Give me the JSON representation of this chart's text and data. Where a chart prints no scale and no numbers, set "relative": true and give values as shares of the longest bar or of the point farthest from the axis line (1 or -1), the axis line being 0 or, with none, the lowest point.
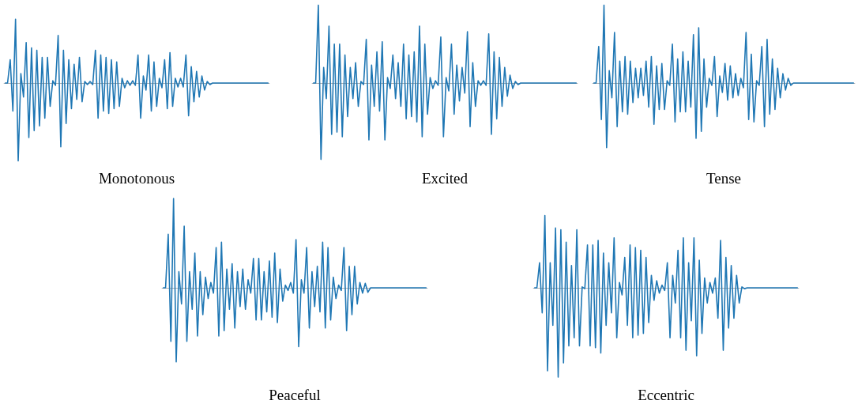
{
  "chart_data": [
    {
      "type": "line",
      "title": "Monotonous",
      "relative": true,
      "color": "#1f77b4",
      "categories": [
        null,
        null,
        null,
        null,
        null,
        null,
        null,
        null,
        null,
        null,
        null,
        null,
        null,
        null,
        null,
        null,
        null,
        null,
        null,
        null,
        null,
        null,
        null,
        null,
        null,
        null,
        null,
        null,
        null,
        null,
        null,
        null,
        null,
        null,
        null,
        null,
        null,
        null,
        null,
        null,
        null,
        null,
        null,
        null,
        null,
        null,
        null,
        null,
        null,
        null,
        null,
        null,
        null,
        null,
        null,
        null,
        null,
        null,
        null,
        null,
        null,
        null,
        null,
        null,
        null,
        null,
        null,
        null,
        null,
        null,
        null,
        null,
        null,
        null,
        null,
        null,
        null,
        null,
        null,
        null,
        null,
        null,
        null,
        null,
        null,
        null,
        null,
        null,
        null,
        null,
        null,
        null,
        null,
        null,
        null,
        null,
        null,
        null,
        null,
        null
      ],
      "values": [
        0,
        0,
        0.3,
        -0.36,
        0.82,
        -1,
        0.12,
        -0.18,
        0.52,
        -0.7,
        0.45,
        -0.61,
        0.42,
        -0.55,
        0.33,
        -0.45,
        0.33,
        -0.3,
        0.03,
        -0.03,
        0.61,
        -0.82,
        0.42,
        -0.52,
        0.3,
        -0.33,
        0.24,
        -0.21,
        0.33,
        -0.24,
        0.02,
        -0.02,
        0.02,
        -0.02,
        0.42,
        -0.45,
        0.36,
        -0.36,
        0.33,
        -0.39,
        0.3,
        -0.33,
        0.27,
        -0.3,
        0.06,
        -0.06,
        0.03,
        -0.03,
        0.03,
        -0.03,
        0.36,
        -0.45,
        0.09,
        -0.09,
        0.36,
        -0.36,
        0.27,
        -0.3,
        0.06,
        -0.06,
        0.3,
        -0.33,
        0.39,
        -0.3,
        0.06,
        -0.05,
        0.06,
        -0.05,
        0.36,
        -0.42,
        0.21,
        -0.24,
        0.15,
        -0.18,
        0.09,
        -0.09,
        0.02,
        -0.02,
        0,
        0,
        0,
        0,
        0,
        0,
        0,
        0,
        0,
        0,
        0,
        0,
        0,
        0,
        0,
        0,
        0,
        0,
        0,
        0,
        0,
        0
      ]
    },
    {
      "type": "line",
      "title": "Excited",
      "relative": true,
      "color": "#1f77b4",
      "categories": [
        null,
        null,
        null,
        null,
        null,
        null,
        null,
        null,
        null,
        null,
        null,
        null,
        null,
        null,
        null,
        null,
        null,
        null,
        null,
        null,
        null,
        null,
        null,
        null,
        null,
        null,
        null,
        null,
        null,
        null,
        null,
        null,
        null,
        null,
        null,
        null,
        null,
        null,
        null,
        null,
        null,
        null,
        null,
        null,
        null,
        null,
        null,
        null,
        null,
        null,
        null,
        null,
        null,
        null,
        null,
        null,
        null,
        null,
        null,
        null,
        null,
        null,
        null,
        null,
        null,
        null,
        null,
        null,
        null,
        null,
        null,
        null,
        null,
        null,
        null,
        null,
        null,
        null,
        null,
        null,
        null,
        null,
        null,
        null,
        null,
        null,
        null,
        null,
        null,
        null,
        null,
        null,
        null,
        null,
        null,
        null,
        null,
        null,
        null,
        null
      ],
      "values": [
        0,
        0,
        1,
        -0.98,
        0.2,
        -0.2,
        0.73,
        -0.66,
        0.5,
        -0.63,
        0.5,
        -0.69,
        0.36,
        -0.43,
        0.2,
        -0.2,
        0.26,
        -0.3,
        0.02,
        -0.02,
        0.56,
        -0.73,
        0.23,
        -0.3,
        0.4,
        -0.36,
        0.53,
        -0.73,
        0.07,
        -0.07,
        0.36,
        -0.2,
        0.26,
        -0.3,
        0.5,
        -0.46,
        0.36,
        -0.43,
        0.4,
        -0.5,
        0.73,
        -0.69,
        0.5,
        -0.4,
        0.07,
        -0.07,
        0.03,
        -0.03,
        0.59,
        -0.69,
        0.07,
        -0.1,
        0.5,
        -0.4,
        0.23,
        -0.23,
        0.2,
        -0.13,
        0.66,
        -0.56,
        0.26,
        -0.3,
        0.03,
        -0.03,
        0.03,
        -0.03,
        0.63,
        -0.66,
        0.4,
        -0.46,
        0.33,
        -0.3,
        0.2,
        -0.17,
        0.1,
        -0.07,
        0.02,
        -0.02,
        0,
        0,
        0,
        0,
        0,
        0,
        0,
        0,
        0,
        0,
        0,
        0,
        0,
        0,
        0,
        0,
        0,
        0,
        0,
        0,
        0,
        0
      ]
    },
    {
      "type": "line",
      "title": "Tense",
      "relative": true,
      "color": "#1f77b4",
      "categories": [
        null,
        null,
        null,
        null,
        null,
        null,
        null,
        null,
        null,
        null,
        null,
        null,
        null,
        null,
        null,
        null,
        null,
        null,
        null,
        null,
        null,
        null,
        null,
        null,
        null,
        null,
        null,
        null,
        null,
        null,
        null,
        null,
        null,
        null,
        null,
        null,
        null,
        null,
        null,
        null,
        null,
        null,
        null,
        null,
        null,
        null,
        null,
        null,
        null,
        null,
        null,
        null,
        null,
        null,
        null,
        null,
        null,
        null,
        null,
        null,
        null,
        null,
        null,
        null,
        null,
        null,
        null,
        null,
        null,
        null,
        null,
        null,
        null,
        null,
        null,
        null,
        null,
        null,
        null,
        null,
        null,
        null,
        null,
        null,
        null,
        null,
        null,
        null,
        null,
        null,
        null,
        null,
        null,
        null,
        null,
        null,
        null,
        null,
        null,
        null
      ],
      "values": [
        0,
        0,
        0.47,
        -0.47,
        1,
        -0.83,
        0.16,
        -0.19,
        0.65,
        -0.56,
        0.28,
        -0.37,
        0.34,
        -0.4,
        0.28,
        -0.25,
        0.19,
        -0.19,
        0.19,
        -0.16,
        0.28,
        -0.31,
        0.34,
        -0.53,
        0.22,
        -0.34,
        0.25,
        -0.34,
        0.03,
        -0.03,
        0.5,
        -0.5,
        0.31,
        -0.37,
        0.4,
        -0.37,
        0.28,
        -0.31,
        0.62,
        -0.71,
        0.71,
        -0.62,
        0.31,
        -0.31,
        0.06,
        -0.03,
        0.34,
        -0.43,
        0.09,
        -0.12,
        0.25,
        -0.22,
        0.22,
        -0.19,
        0.12,
        -0.16,
        0.06,
        -0.06,
        0.65,
        -0.47,
        0.37,
        -0.5,
        0.03,
        -0.03,
        0.47,
        -0.56,
        0.56,
        -0.4,
        0.31,
        -0.34,
        0.19,
        -0.19,
        0.12,
        -0.09,
        0.06,
        -0.03,
        0,
        0,
        0,
        0,
        0,
        0,
        0,
        0,
        0,
        0,
        0,
        0,
        0,
        0,
        0,
        0,
        0,
        0,
        0,
        0,
        0,
        0,
        0,
        0
      ]
    },
    {
      "type": "line",
      "title": "Peaceful",
      "relative": true,
      "color": "#1f77b4",
      "categories": [
        null,
        null,
        null,
        null,
        null,
        null,
        null,
        null,
        null,
        null,
        null,
        null,
        null,
        null,
        null,
        null,
        null,
        null,
        null,
        null,
        null,
        null,
        null,
        null,
        null,
        null,
        null,
        null,
        null,
        null,
        null,
        null,
        null,
        null,
        null,
        null,
        null,
        null,
        null,
        null,
        null,
        null,
        null,
        null,
        null,
        null,
        null,
        null,
        null,
        null,
        null,
        null,
        null,
        null,
        null,
        null,
        null,
        null,
        null,
        null,
        null,
        null,
        null,
        null,
        null,
        null,
        null,
        null,
        null,
        null,
        null,
        null,
        null,
        null,
        null,
        null,
        null,
        null,
        null,
        null,
        null,
        null,
        null,
        null,
        null,
        null,
        null,
        null,
        null,
        null,
        null,
        null,
        null,
        null,
        null,
        null,
        null,
        null,
        null,
        null
      ],
      "values": [
        0,
        0,
        0.6,
        -0.6,
        1,
        -0.83,
        0.18,
        -0.18,
        0.69,
        -0.6,
        0.18,
        -0.24,
        0.39,
        -0.54,
        0.18,
        -0.3,
        0.12,
        -0.12,
        0.06,
        -0.06,
        0.45,
        -0.54,
        0.51,
        -0.48,
        0.21,
        -0.24,
        0.27,
        -0.45,
        0.18,
        -0.21,
        0.21,
        -0.24,
        0.09,
        -0.06,
        0.33,
        -0.36,
        0.33,
        -0.36,
        0.18,
        -0.27,
        0.3,
        -0.33,
        0.39,
        -0.39,
        0.21,
        -0.15,
        0.03,
        -0.03,
        0.06,
        -0.06,
        0.54,
        -0.66,
        0.09,
        -0.06,
        0.45,
        -0.45,
        0.18,
        -0.21,
        0.24,
        -0.27,
        0.51,
        -0.45,
        0.45,
        -0.36,
        0.12,
        -0.12,
        0.03,
        -0.03,
        0.45,
        -0.48,
        0.24,
        -0.3,
        0.24,
        -0.18,
        0.06,
        -0.06,
        0.05,
        -0.05,
        0,
        0,
        0,
        0,
        0,
        0,
        0,
        0,
        0,
        0,
        0,
        0,
        0,
        0,
        0,
        0,
        0,
        0,
        0,
        0,
        0,
        0
      ]
    },
    {
      "type": "line",
      "title": "Eccentric",
      "relative": true,
      "color": "#1f77b4",
      "categories": [
        null,
        null,
        null,
        null,
        null,
        null,
        null,
        null,
        null,
        null,
        null,
        null,
        null,
        null,
        null,
        null,
        null,
        null,
        null,
        null,
        null,
        null,
        null,
        null,
        null,
        null,
        null,
        null,
        null,
        null,
        null,
        null,
        null,
        null,
        null,
        null,
        null,
        null,
        null,
        null,
        null,
        null,
        null,
        null,
        null,
        null,
        null,
        null,
        null,
        null,
        null,
        null,
        null,
        null,
        null,
        null,
        null,
        null,
        null,
        null,
        null,
        null,
        null,
        null,
        null,
        null,
        null,
        null,
        null,
        null,
        null,
        null,
        null,
        null,
        null,
        null,
        null,
        null,
        null,
        null,
        null,
        null,
        null,
        null,
        null,
        null,
        null,
        null,
        null,
        null,
        null,
        null,
        null,
        null,
        null,
        null,
        null,
        null,
        null,
        null
      ],
      "values": [
        0,
        0,
        0.28,
        -0.28,
        0.81,
        -0.93,
        0.28,
        -0.42,
        0.67,
        -1,
        0.65,
        -0.84,
        0.51,
        -0.65,
        0.25,
        -0.56,
        0.65,
        -0.65,
        0.01,
        -0.01,
        0.48,
        -0.65,
        0.48,
        -0.67,
        0.53,
        -0.73,
        0.39,
        -0.42,
        0.28,
        -0.28,
        0.56,
        -0.56,
        0.06,
        -0.08,
        0.34,
        -0.42,
        0.48,
        -0.56,
        0.45,
        -0.53,
        0.42,
        -0.51,
        0.34,
        -0.39,
        0.14,
        -0.14,
        0.08,
        -0.06,
        0.03,
        -0.03,
        0.28,
        -0.56,
        0.14,
        -0.17,
        0.42,
        -0.56,
        0.56,
        -0.7,
        0.28,
        -0.37,
        0.56,
        -0.76,
        0.31,
        -0.51,
        0.11,
        -0.17,
        0.06,
        -0.06,
        0.11,
        -0.34,
        0.53,
        -0.7,
        0.34,
        -0.45,
        0.25,
        -0.34,
        0.14,
        -0.17,
        0.01,
        -0.01,
        0,
        0,
        0,
        0,
        0,
        0,
        0,
        0,
        0,
        0,
        0,
        0,
        0,
        0,
        0,
        0,
        0,
        0,
        0,
        0
      ]
    }
  ]
}
